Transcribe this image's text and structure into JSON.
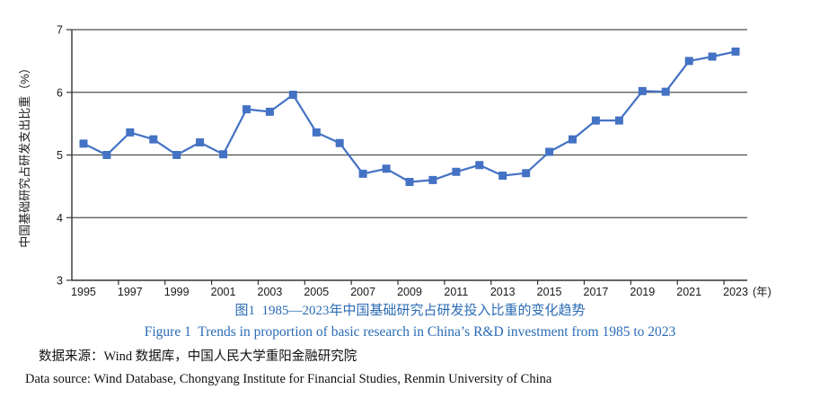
{
  "figure": {
    "caption_zh": "图1  1985—2023年中国基础研究占研发投入比重的变化趋势",
    "caption_en": "Figure 1  Trends in proportion of basic research in China’s R&D investment from 1985 to 2023",
    "source_zh": "数据来源：Wind 数据库，中国人民大学重阳金融研究院",
    "source_en": "Data source: Wind Database, Chongyang Institute for Financial Studies, Renmin University of China",
    "caption_color": "#2b6cb5"
  },
  "chart_data": {
    "type": "line",
    "title": "",
    "ylabel": "中国基础研究占研发支出比重（%）",
    "x_unit_label": "(年)",
    "ylim": [
      3,
      7
    ],
    "yticks": [
      3,
      4,
      5,
      6,
      7
    ],
    "xtick_labels": [
      "1995",
      "1997",
      "1999",
      "2001",
      "2003",
      "2005",
      "2007",
      "2009",
      "2011",
      "2013",
      "2015",
      "2017",
      "2019",
      "2021",
      "2023"
    ],
    "grid": "horizontal",
    "legend": "none",
    "line_color": "#4472C4",
    "marker": "square",
    "grid_color": "#4d4d4d",
    "axis_color": "#333333",
    "x": [
      1995,
      1996,
      1997,
      1998,
      1999,
      2000,
      2001,
      2002,
      2003,
      2004,
      2005,
      2006,
      2007,
      2008,
      2009,
      2010,
      2011,
      2012,
      2013,
      2014,
      2015,
      2016,
      2017,
      2018,
      2019,
      2020,
      2021,
      2022,
      2023
    ],
    "values": [
      5.18,
      5.0,
      5.36,
      5.25,
      5.0,
      5.2,
      5.01,
      5.73,
      5.69,
      5.96,
      5.36,
      5.19,
      4.7,
      4.78,
      4.57,
      4.6,
      4.73,
      4.84,
      4.67,
      4.71,
      5.05,
      5.25,
      5.55,
      5.55,
      6.02,
      6.01,
      6.5,
      6.57,
      6.65
    ]
  }
}
